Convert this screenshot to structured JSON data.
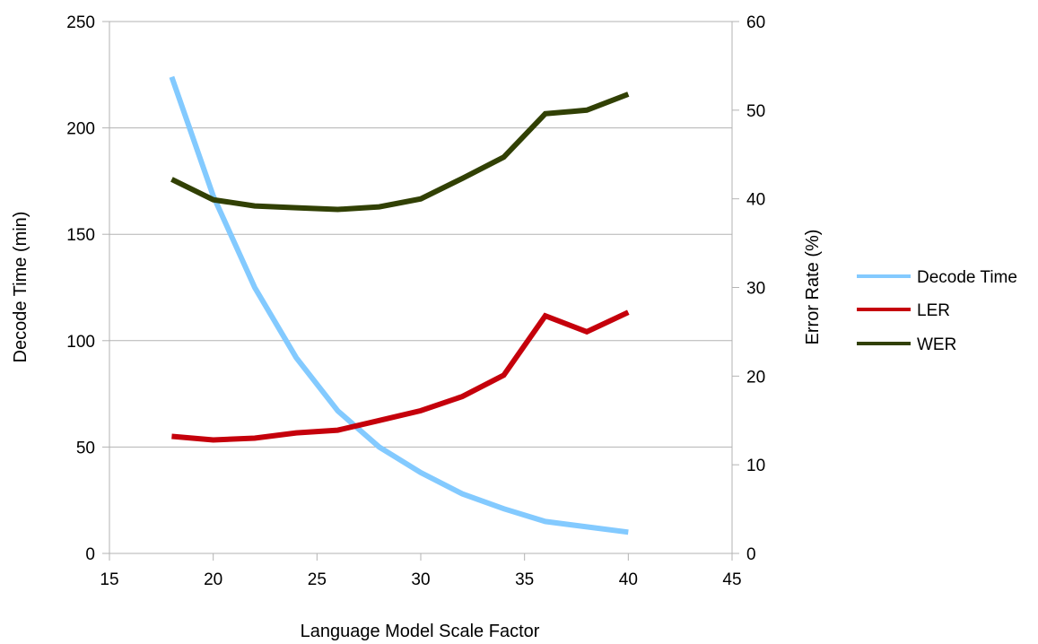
{
  "chart_data": {
    "type": "line",
    "xlabel": "Language Model Scale Factor",
    "ylabel": "Decode Time (min)",
    "y2label": "Error Rate (%)",
    "xlim": [
      15,
      45
    ],
    "ylim": [
      0,
      250
    ],
    "y2lim": [
      0,
      60
    ],
    "xticks": [
      "15",
      "20",
      "25",
      "30",
      "35",
      "40",
      "45"
    ],
    "yticks": [
      "0",
      "50",
      "100",
      "150",
      "200",
      "250"
    ],
    "y2ticks": [
      "0",
      "10",
      "20",
      "30",
      "40",
      "50",
      "60"
    ],
    "grid": "horizontal",
    "legend_position": "right",
    "series": [
      {
        "name": "Decode Time",
        "axis": "left",
        "color": "#83caff",
        "x": [
          18,
          20,
          22,
          24,
          26,
          28,
          30,
          32,
          34,
          36,
          38,
          40
        ],
        "values": [
          224,
          168,
          125,
          92,
          67,
          50,
          38,
          28,
          21,
          15,
          12.5,
          10
        ]
      },
      {
        "name": "LER",
        "axis": "right",
        "color": "#c5000b",
        "x": [
          18,
          20,
          22,
          24,
          26,
          28,
          30,
          32,
          34,
          36,
          38,
          40
        ],
        "values": [
          13.2,
          12.8,
          13.0,
          13.6,
          13.9,
          15.0,
          16.1,
          17.7,
          20.1,
          26.8,
          25.0,
          27.2
        ]
      },
      {
        "name": "WER",
        "axis": "right",
        "color": "#314004",
        "x": [
          18,
          20,
          22,
          24,
          26,
          28,
          30,
          32,
          34,
          36,
          38,
          40
        ],
        "values": [
          42.2,
          39.9,
          39.2,
          39.0,
          38.8,
          39.1,
          40.0,
          42.3,
          44.7,
          49.6,
          50.0,
          51.8
        ]
      }
    ]
  }
}
